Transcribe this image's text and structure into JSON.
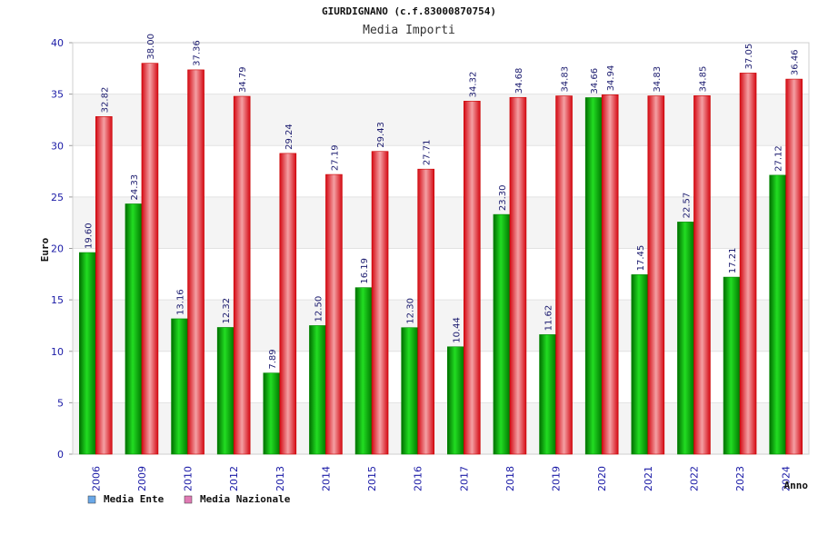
{
  "chart_data": {
    "type": "bar",
    "title": "GIURDIGNANO (c.f.83000870754)",
    "subtitle": "Media Importi",
    "xlabel": "Anno",
    "ylabel": "Euro",
    "ylim": [
      0,
      40
    ],
    "yticks": [
      0,
      5,
      10,
      15,
      20,
      25,
      30,
      35,
      40
    ],
    "grid": true,
    "legend_position": "bottom-left",
    "categories": [
      "2006",
      "2009",
      "2010",
      "2012",
      "2013",
      "2014",
      "2015",
      "2016",
      "2017",
      "2018",
      "2019",
      "2020",
      "2021",
      "2022",
      "2023",
      "2024"
    ],
    "series": [
      {
        "name": "Media Ente",
        "color": "#00b400",
        "legend_color": "#6aa8e8",
        "values": [
          19.6,
          24.33,
          13.16,
          12.32,
          7.89,
          12.5,
          16.19,
          12.3,
          10.44,
          23.3,
          11.62,
          34.66,
          17.45,
          22.57,
          17.21,
          27.12
        ],
        "labels": [
          "19.60",
          "24.33",
          "13.16",
          "12.32",
          "7.89",
          "12.50",
          "16.19",
          "12.30",
          "10.44",
          "23.30",
          "11.62",
          "34.66",
          "17.45",
          "22.57",
          "17.21",
          "27.12"
        ]
      },
      {
        "name": "Media Nazionale",
        "color": "#e81c24",
        "legend_color": "#e07ab4",
        "values": [
          32.82,
          38.0,
          37.36,
          34.79,
          29.24,
          27.19,
          29.43,
          27.71,
          34.32,
          34.68,
          34.83,
          34.94,
          34.83,
          34.85,
          37.05,
          36.46
        ],
        "labels": [
          "32.82",
          "38.00",
          "37.36",
          "34.79",
          "29.24",
          "27.19",
          "29.43",
          "27.71",
          "34.32",
          "34.68",
          "34.83",
          "34.94",
          "34.83",
          "34.85",
          "37.05",
          "36.46"
        ]
      }
    ]
  }
}
